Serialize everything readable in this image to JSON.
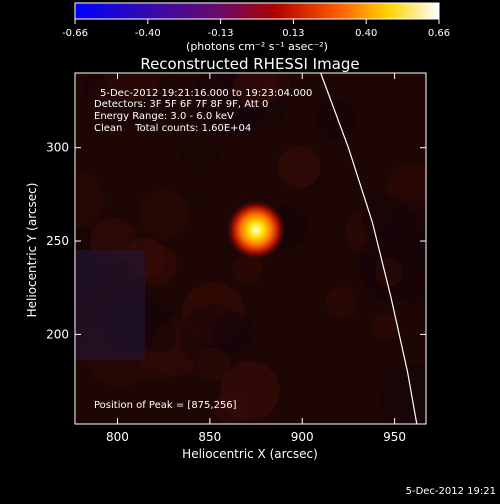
{
  "colorbar": {
    "ticks": [
      "-0.66",
      "-0.40",
      "-0.13",
      "0.13",
      "0.40",
      "0.66"
    ],
    "units": "(photons cm⁻² s⁻¹ asec⁻²)"
  },
  "title": "Reconstructed RHESSI Image",
  "annotations": [
    "5-Dec-2012 19:21:16.000 to 19:23:04.000",
    "Detectors: 3F 5F 6F 7F 8F 9F, Att 0",
    "Energy Range: 3.0 - 6.0 keV",
    "Clean    Total counts: 1.60E+04"
  ],
  "peak_label": "Position of Peak = [875,256]",
  "footer_date": "5-Dec-2012 19:21",
  "chart_data": {
    "type": "heatmap",
    "title": "Reconstructed RHESSI Image",
    "xlabel": "Heliocentric X (arcsec)",
    "ylabel": "Heliocentric Y (arcsec)",
    "xlim": [
      777,
      967
    ],
    "ylim": [
      152,
      340
    ],
    "xticks": [
      800,
      850,
      900,
      950
    ],
    "yticks": [
      200,
      250,
      300
    ],
    "color_range": [
      -0.66,
      0.66
    ],
    "colormap": "blue-purple-red-yellow-white",
    "peak": {
      "x": 875,
      "y": 256
    },
    "limb_curve": [
      [
        910,
        340
      ],
      [
        925,
        300
      ],
      [
        938,
        260
      ],
      [
        948,
        220
      ],
      [
        957,
        180
      ],
      [
        962,
        152
      ]
    ]
  }
}
